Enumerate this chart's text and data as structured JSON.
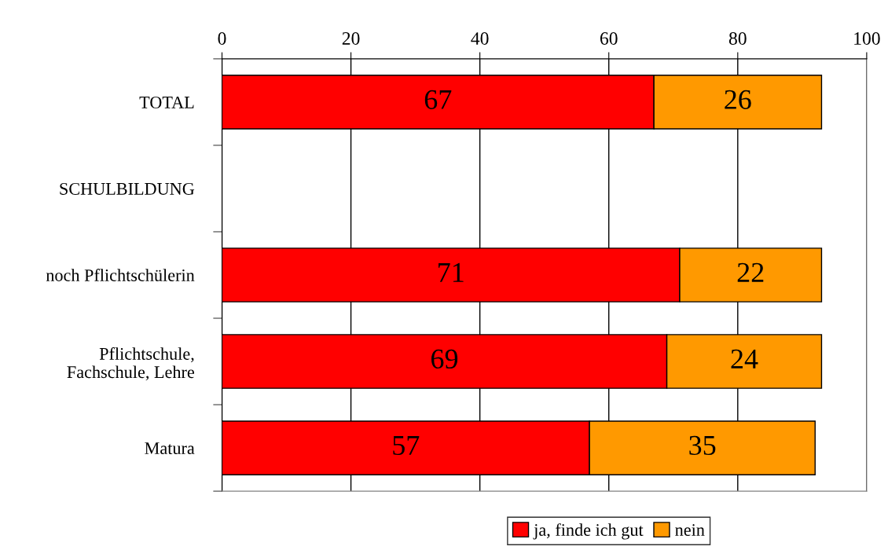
{
  "chart_data": {
    "type": "bar",
    "orientation": "horizontal",
    "stacked": true,
    "categories": [
      "TOTAL",
      "SCHULBILDUNG",
      "noch Pflichtschülerin",
      "Pflichtschule,\nFachschule, Lehre",
      "Matura"
    ],
    "series": [
      {
        "name": "ja, finde ich gut",
        "color": "#ff0000",
        "values": [
          67,
          null,
          71,
          69,
          57
        ]
      },
      {
        "name": "nein",
        "color": "#ff9900",
        "values": [
          26,
          null,
          22,
          24,
          35
        ]
      }
    ],
    "xlim": [
      0,
      100
    ],
    "xticks": [
      0,
      20,
      40,
      60,
      80,
      100
    ],
    "grid": "x",
    "legend": "bottom",
    "data_labels": true
  }
}
